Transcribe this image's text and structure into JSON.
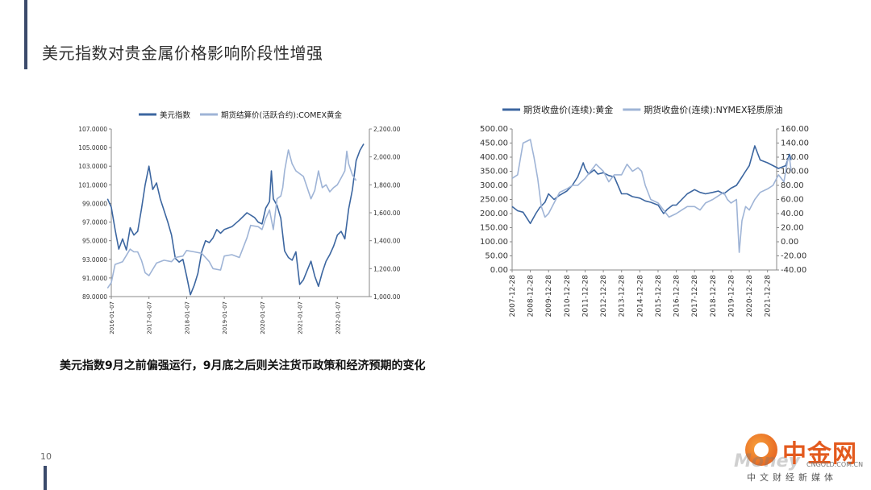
{
  "page": {
    "title": "美元指数对贵金属价格影响阶段性增强",
    "caption": "美元指数9月之前偏强运行，9月底之后则关注货币政策和经济预期的变化",
    "page_number": "10"
  },
  "logo": {
    "name": "中金网",
    "watermark": "Money",
    "domain": "CNGOLD.COM.CN",
    "tagline": "中文财经新媒体"
  },
  "colors": {
    "dark_series": "#3c66a0",
    "light_series": "#9fb4d6"
  },
  "chart_data": [
    {
      "type": "line",
      "title": "",
      "x_tick_labels": [
        "2016-01-07",
        "2017-01-07",
        "2018-01-07",
        "2019-01-07",
        "2020-01-07",
        "2021-01-07",
        "2022-01-07"
      ],
      "left_axis": {
        "ylim": [
          89,
          107
        ],
        "tick_labels": [
          "89.0000",
          "91.0000",
          "93.0000",
          "95.0000",
          "97.0000",
          "99.0000",
          "101.0000",
          "103.0000",
          "105.0000",
          "107.0000"
        ]
      },
      "right_axis": {
        "ylim": [
          1000,
          2200
        ],
        "tick_labels": [
          "1,000.00",
          "1,200.00",
          "1,400.00",
          "1,600.00",
          "1,800.00",
          "2,000.00",
          "2,200.00"
        ]
      },
      "legend_position": "top",
      "series": [
        {
          "name": "美元指数",
          "axis": "left",
          "color": "#3c66a0",
          "x": [
            2015.9,
            2016.0,
            2016.1,
            2016.2,
            2016.3,
            2016.4,
            2016.5,
            2016.6,
            2016.7,
            2016.8,
            2016.9,
            2017.0,
            2017.1,
            2017.2,
            2017.3,
            2017.5,
            2017.6,
            2017.7,
            2017.8,
            2017.9,
            2018.0,
            2018.1,
            2018.2,
            2018.3,
            2018.4,
            2018.5,
            2018.6,
            2018.7,
            2018.8,
            2018.9,
            2019.0,
            2019.2,
            2019.4,
            2019.6,
            2019.8,
            2019.9,
            2020.0,
            2020.1,
            2020.2,
            2020.25,
            2020.3,
            2020.4,
            2020.5,
            2020.6,
            2020.7,
            2020.8,
            2020.9,
            2021.0,
            2021.1,
            2021.2,
            2021.3,
            2021.4,
            2021.5,
            2021.6,
            2021.7,
            2021.8,
            2021.9,
            2022.0,
            2022.1,
            2022.2,
            2022.3,
            2022.4,
            2022.5,
            2022.6,
            2022.7
          ],
          "y": [
            99.5,
            98.6,
            96.2,
            94.1,
            95.2,
            94.0,
            96.4,
            95.6,
            96.0,
            98.4,
            101.0,
            103.0,
            100.5,
            101.2,
            99.5,
            97.0,
            95.6,
            93.1,
            92.7,
            93.0,
            91.2,
            89.2,
            90.2,
            91.5,
            93.8,
            95.0,
            94.8,
            95.3,
            96.2,
            95.8,
            96.2,
            96.5,
            97.2,
            98.0,
            97.5,
            97.0,
            96.8,
            98.5,
            99.2,
            102.5,
            99.5,
            98.8,
            97.4,
            93.9,
            93.2,
            92.9,
            93.8,
            90.3,
            90.8,
            91.8,
            92.8,
            91.2,
            90.1,
            91.6,
            92.8,
            93.5,
            94.4,
            95.6,
            96.0,
            95.2,
            98.4,
            100.5,
            103.6,
            104.7,
            105.4
          ]
        },
        {
          "name": "期货结算价(活跃合约):COMEX黄金",
          "axis": "right",
          "color": "#9fb4d6",
          "x": [
            2015.9,
            2016.0,
            2016.1,
            2016.3,
            2016.5,
            2016.6,
            2016.7,
            2016.8,
            2016.9,
            2017.0,
            2017.2,
            2017.4,
            2017.6,
            2017.7,
            2017.9,
            2018.0,
            2018.2,
            2018.4,
            2018.6,
            2018.7,
            2018.9,
            2019.0,
            2019.2,
            2019.4,
            2019.5,
            2019.6,
            2019.7,
            2019.9,
            2020.0,
            2020.1,
            2020.2,
            2020.3,
            2020.4,
            2020.5,
            2020.55,
            2020.6,
            2020.7,
            2020.8,
            2020.9,
            2021.0,
            2021.1,
            2021.2,
            2021.3,
            2021.4,
            2021.5,
            2021.6,
            2021.7,
            2021.8,
            2021.9,
            2022.0,
            2022.1,
            2022.2,
            2022.25,
            2022.3,
            2022.4,
            2022.5
          ],
          "y": [
            1060,
            1100,
            1230,
            1250,
            1340,
            1320,
            1320,
            1260,
            1170,
            1150,
            1240,
            1260,
            1250,
            1280,
            1290,
            1330,
            1320,
            1310,
            1250,
            1200,
            1190,
            1290,
            1300,
            1280,
            1350,
            1420,
            1510,
            1500,
            1480,
            1560,
            1620,
            1480,
            1700,
            1720,
            1780,
            1900,
            2050,
            1950,
            1900,
            1880,
            1860,
            1780,
            1700,
            1760,
            1900,
            1780,
            1800,
            1750,
            1780,
            1800,
            1850,
            1900,
            2040,
            1950,
            1870,
            1830
          ]
        }
      ]
    },
    {
      "type": "line",
      "title": "",
      "x_tick_labels": [
        "2007-12-28",
        "2008-12-28",
        "2009-12-28",
        "2010-12-28",
        "2011-12-28",
        "2012-12-28",
        "2013-12-28",
        "2014-12-28",
        "2015-12-28",
        "2016-12-28",
        "2017-12-28",
        "2018-12-28",
        "2019-12-28",
        "2020-12-28",
        "2021-12-28"
      ],
      "left_axis": {
        "ylim": [
          0,
          500
        ],
        "tick_labels": [
          "0.00",
          "50.00",
          "100.00",
          "150.00",
          "200.00",
          "250.00",
          "300.00",
          "350.00",
          "400.00",
          "450.00",
          "500.00"
        ]
      },
      "right_axis": {
        "ylim": [
          -40,
          160
        ],
        "tick_labels": [
          "-40.00",
          "-20.00",
          "0.00",
          "20.00",
          "40.00",
          "60.00",
          "80.00",
          "100.00",
          "120.00",
          "140.00",
          "160.00"
        ]
      },
      "legend_position": "top",
      "series": [
        {
          "name": "期货收盘价(连续):黄金",
          "axis": "left",
          "color": "#3c66a0",
          "x": [
            2007.0,
            2007.3,
            2007.6,
            2008.0,
            2008.3,
            2008.5,
            2008.8,
            2009.0,
            2009.3,
            2009.6,
            2010.0,
            2010.3,
            2010.6,
            2010.9,
            2011.0,
            2011.2,
            2011.5,
            2011.7,
            2012.0,
            2012.3,
            2012.6,
            2013.0,
            2013.3,
            2013.6,
            2014.0,
            2014.3,
            2014.6,
            2015.0,
            2015.3,
            2015.5,
            2015.8,
            2016.0,
            2016.3,
            2016.6,
            2017.0,
            2017.3,
            2017.6,
            2018.0,
            2018.3,
            2018.6,
            2019.0,
            2019.3,
            2019.5,
            2019.8,
            2020.0,
            2020.3,
            2020.6,
            2021.0,
            2021.3,
            2021.6,
            2022.0,
            2022.1,
            2022.2,
            2022.3
          ],
          "y": [
            225,
            210,
            205,
            165,
            200,
            220,
            240,
            270,
            250,
            265,
            280,
            300,
            330,
            380,
            360,
            340,
            355,
            340,
            345,
            335,
            330,
            270,
            270,
            260,
            255,
            245,
            240,
            230,
            200,
            215,
            230,
            230,
            250,
            270,
            285,
            275,
            270,
            275,
            280,
            270,
            290,
            300,
            320,
            350,
            370,
            440,
            390,
            380,
            370,
            360,
            370,
            390,
            410,
            390
          ]
        },
        {
          "name": "期货收盘价(连续):NYMEX轻质原油",
          "axis": "right",
          "color": "#9fb4d6",
          "x": [
            2007.0,
            2007.3,
            2007.6,
            2008.0,
            2008.2,
            2008.4,
            2008.6,
            2008.8,
            2009.0,
            2009.3,
            2009.6,
            2010.0,
            2010.3,
            2010.6,
            2011.0,
            2011.3,
            2011.6,
            2012.0,
            2012.3,
            2012.6,
            2013.0,
            2013.3,
            2013.6,
            2013.9,
            2014.1,
            2014.3,
            2014.6,
            2015.0,
            2015.3,
            2015.6,
            2016.0,
            2016.3,
            2016.6,
            2017.0,
            2017.3,
            2017.6,
            2018.0,
            2018.3,
            2018.6,
            2018.8,
            2019.0,
            2019.3,
            2019.45,
            2019.6,
            2019.8,
            2020.0,
            2020.3,
            2020.6,
            2021.0,
            2021.3,
            2021.6,
            2021.9,
            2022.0,
            2022.1,
            2022.2,
            2022.3
          ],
          "y": [
            90,
            95,
            140,
            145,
            120,
            90,
            50,
            35,
            40,
            55,
            70,
            75,
            80,
            80,
            90,
            100,
            110,
            100,
            85,
            95,
            95,
            110,
            100,
            105,
            100,
            80,
            60,
            55,
            45,
            35,
            40,
            45,
            50,
            50,
            45,
            55,
            60,
            65,
            70,
            60,
            55,
            60,
            -15,
            30,
            50,
            45,
            60,
            70,
            75,
            80,
            95,
            85,
            100,
            115,
            120,
            100
          ]
        }
      ]
    }
  ]
}
